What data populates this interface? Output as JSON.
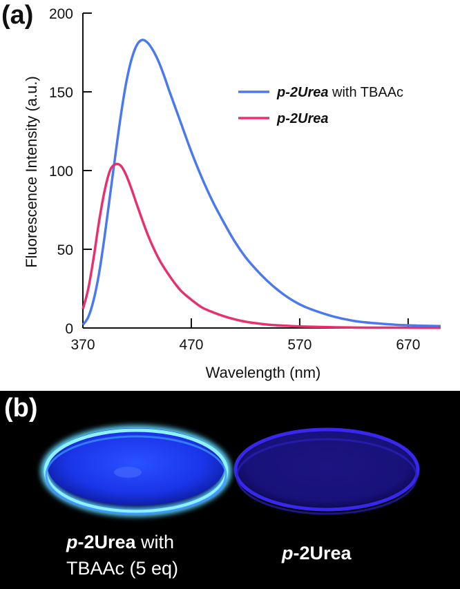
{
  "panel_a": {
    "label": "(a)"
  },
  "panel_b": {
    "label": "(b)",
    "left_caption": {
      "compound_prefix": "p",
      "compound_name": "-2Urea",
      "line1_suffix": " with",
      "line2": "TBAAc (5 eq)"
    },
    "right_caption": {
      "compound_prefix": "p",
      "compound_name": "-2Urea"
    },
    "colors": {
      "background": "#000000",
      "left_glow": "#5fd8ff",
      "left_disc": "#1a3dff",
      "right_disc": "#2a20c8"
    }
  },
  "chart_data": {
    "type": "line",
    "xlabel": "Wavelength (nm)",
    "ylabel": "Fluorescence Intensity (a.u.)",
    "xlim": [
      370,
      700
    ],
    "ylim": [
      0,
      200
    ],
    "xticks": [
      370,
      470,
      570,
      670
    ],
    "yticks": [
      0,
      50,
      100,
      150,
      200
    ],
    "legend_position": "top-right",
    "series": [
      {
        "name": "p-2Urea with TBAAc",
        "legend_bold": "p-2Urea",
        "legend_rest": " with TBAAc",
        "color": "#4a78ef",
        "x": [
          370,
          375,
          380,
          385,
          390,
          395,
          400,
          405,
          410,
          415,
          420,
          425,
          430,
          435,
          440,
          445,
          450,
          460,
          470,
          480,
          490,
          500,
          510,
          520,
          530,
          540,
          550,
          560,
          570,
          580,
          600,
          620,
          640,
          660,
          680,
          700
        ],
        "y": [
          2,
          7,
          18,
          35,
          58,
          84,
          110,
          135,
          156,
          171,
          180,
          183,
          181,
          176,
          169,
          160,
          150,
          131,
          112,
          95,
          80,
          67,
          55,
          45,
          37,
          30,
          24,
          19,
          15,
          12,
          7.5,
          4.5,
          3,
          2,
          1.5,
          1.2
        ]
      },
      {
        "name": "p-2Urea",
        "legend_bold": "p-2Urea",
        "legend_rest": "",
        "color": "#e8306b",
        "x": [
          370,
          375,
          380,
          385,
          390,
          395,
          400,
          405,
          410,
          415,
          420,
          430,
          440,
          450,
          460,
          470,
          480,
          490,
          500,
          510,
          520,
          530,
          540,
          550,
          560,
          570,
          580,
          600,
          620,
          640,
          660,
          680,
          700
        ],
        "y": [
          12,
          25,
          45,
          68,
          87,
          100,
          104,
          103,
          97,
          88,
          78,
          59,
          44,
          33,
          24,
          18,
          13,
          10,
          7.5,
          5.5,
          4,
          3,
          2.2,
          1.7,
          1.3,
          1,
          0.8,
          0.5,
          0.3,
          0.2,
          0.2,
          0.1,
          0.1
        ]
      }
    ]
  }
}
